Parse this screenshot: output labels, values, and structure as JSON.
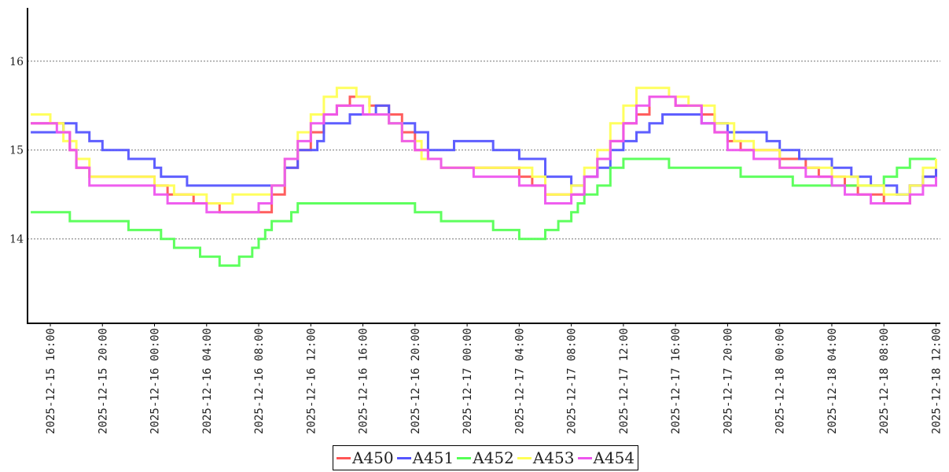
{
  "chart_data": {
    "type": "line",
    "step": true,
    "title": "",
    "xlabel": "",
    "ylabel": "",
    "ylim": [
      13.05,
      16.6
    ],
    "xlim": [
      "2025-12-15 14:15",
      "2025-12-18 12:20"
    ],
    "y_ticks": [
      "14",
      "15",
      "16"
    ],
    "x_ticks": [
      "2025-12-15 16:00",
      "2025-12-15 20:00",
      "2025-12-16 00:00",
      "2025-12-16 04:00",
      "2025-12-16 08:00",
      "2025-12-16 12:00",
      "2025-12-16 16:00",
      "2025-12-16 20:00",
      "2025-12-17 00:00",
      "2025-12-17 04:00",
      "2025-12-17 08:00",
      "2025-12-17 12:00",
      "2025-12-17 16:00",
      "2025-12-17 20:00",
      "2025-12-18 00:00",
      "2025-12-18 04:00",
      "2025-12-18 08:00",
      "2025-12-18 12:00"
    ],
    "grid": "horizontal dotted",
    "legend_position": "bottom-center",
    "series": [
      {
        "name": "A450",
        "color": "#ff5555",
        "points": [
          [
            "2025-12-15 14:30",
            15.3
          ],
          [
            "2025-12-15 17:00",
            15.2
          ],
          [
            "2025-12-15 17:30",
            15.0
          ],
          [
            "2025-12-15 18:00",
            14.8
          ],
          [
            "2025-12-15 19:00",
            14.7
          ],
          [
            "2025-12-15 21:00",
            14.7
          ],
          [
            "2025-12-16 00:00",
            14.6
          ],
          [
            "2025-12-16 01:00",
            14.5
          ],
          [
            "2025-12-16 03:00",
            14.4
          ],
          [
            "2025-12-16 05:00",
            14.3
          ],
          [
            "2025-12-16 09:00",
            14.5
          ],
          [
            "2025-12-16 10:00",
            14.8
          ],
          [
            "2025-12-16 11:00",
            15.0
          ],
          [
            "2025-12-16 12:00",
            15.2
          ],
          [
            "2025-12-16 13:00",
            15.4
          ],
          [
            "2025-12-16 14:00",
            15.5
          ],
          [
            "2025-12-16 15:00",
            15.6
          ],
          [
            "2025-12-16 16:30",
            15.5
          ],
          [
            "2025-12-16 18:00",
            15.4
          ],
          [
            "2025-12-16 19:00",
            15.2
          ],
          [
            "2025-12-16 20:00",
            15.0
          ],
          [
            "2025-12-16 21:00",
            14.9
          ],
          [
            "2025-12-16 22:00",
            14.8
          ],
          [
            "2025-12-17 02:00",
            14.8
          ],
          [
            "2025-12-17 04:00",
            14.7
          ],
          [
            "2025-12-17 05:00",
            14.6
          ],
          [
            "2025-12-17 06:00",
            14.5
          ],
          [
            "2025-12-17 08:00",
            14.5
          ],
          [
            "2025-12-17 09:00",
            14.7
          ],
          [
            "2025-12-17 10:00",
            14.9
          ],
          [
            "2025-12-17 11:00",
            15.1
          ],
          [
            "2025-12-17 12:00",
            15.3
          ],
          [
            "2025-12-17 13:00",
            15.4
          ],
          [
            "2025-12-17 14:00",
            15.6
          ],
          [
            "2025-12-17 16:00",
            15.5
          ],
          [
            "2025-12-17 18:00",
            15.4
          ],
          [
            "2025-12-17 19:00",
            15.2
          ],
          [
            "2025-12-17 20:00",
            15.1
          ],
          [
            "2025-12-17 21:00",
            15.0
          ],
          [
            "2025-12-18 00:00",
            14.9
          ],
          [
            "2025-12-18 02:00",
            14.8
          ],
          [
            "2025-12-18 03:00",
            14.7
          ],
          [
            "2025-12-18 05:00",
            14.6
          ],
          [
            "2025-12-18 06:00",
            14.5
          ],
          [
            "2025-12-18 08:00",
            14.4
          ],
          [
            "2025-12-18 10:00",
            14.6
          ],
          [
            "2025-12-18 11:00",
            14.7
          ],
          [
            "2025-12-18 12:00",
            14.8
          ]
        ]
      },
      {
        "name": "A451",
        "color": "#5555ff",
        "points": [
          [
            "2025-12-15 14:30",
            15.2
          ],
          [
            "2025-12-15 17:00",
            15.3
          ],
          [
            "2025-12-15 18:00",
            15.2
          ],
          [
            "2025-12-15 19:00",
            15.1
          ],
          [
            "2025-12-15 20:00",
            15.0
          ],
          [
            "2025-12-15 22:00",
            14.9
          ],
          [
            "2025-12-16 00:00",
            14.8
          ],
          [
            "2025-12-16 00:30",
            14.7
          ],
          [
            "2025-12-16 02:30",
            14.6
          ],
          [
            "2025-12-16 09:00",
            14.6
          ],
          [
            "2025-12-16 10:00",
            14.8
          ],
          [
            "2025-12-16 11:00",
            15.0
          ],
          [
            "2025-12-16 12:30",
            15.1
          ],
          [
            "2025-12-16 13:00",
            15.3
          ],
          [
            "2025-12-16 15:00",
            15.4
          ],
          [
            "2025-12-16 17:00",
            15.5
          ],
          [
            "2025-12-16 18:00",
            15.3
          ],
          [
            "2025-12-16 20:00",
            15.2
          ],
          [
            "2025-12-16 21:00",
            15.0
          ],
          [
            "2025-12-16 23:00",
            15.1
          ],
          [
            "2025-12-17 01:00",
            15.1
          ],
          [
            "2025-12-17 02:00",
            15.0
          ],
          [
            "2025-12-17 04:00",
            14.9
          ],
          [
            "2025-12-17 06:00",
            14.7
          ],
          [
            "2025-12-17 08:00",
            14.6
          ],
          [
            "2025-12-17 09:00",
            14.7
          ],
          [
            "2025-12-17 10:00",
            14.8
          ],
          [
            "2025-12-17 11:00",
            15.0
          ],
          [
            "2025-12-17 12:00",
            15.1
          ],
          [
            "2025-12-17 13:00",
            15.2
          ],
          [
            "2025-12-17 14:00",
            15.3
          ],
          [
            "2025-12-17 15:00",
            15.4
          ],
          [
            "2025-12-17 18:00",
            15.3
          ],
          [
            "2025-12-17 20:00",
            15.2
          ],
          [
            "2025-12-17 23:00",
            15.1
          ],
          [
            "2025-12-18 00:00",
            15.0
          ],
          [
            "2025-12-18 01:30",
            14.9
          ],
          [
            "2025-12-18 04:00",
            14.8
          ],
          [
            "2025-12-18 05:30",
            14.7
          ],
          [
            "2025-12-18 07:00",
            14.6
          ],
          [
            "2025-12-18 09:00",
            14.5
          ],
          [
            "2025-12-18 10:00",
            14.6
          ],
          [
            "2025-12-18 11:00",
            14.7
          ],
          [
            "2025-12-18 12:00",
            14.8
          ]
        ]
      },
      {
        "name": "A452",
        "color": "#55ff55",
        "points": [
          [
            "2025-12-15 14:30",
            14.3
          ],
          [
            "2025-12-15 17:30",
            14.2
          ],
          [
            "2025-12-15 22:00",
            14.1
          ],
          [
            "2025-12-16 00:30",
            14.0
          ],
          [
            "2025-12-16 01:30",
            13.9
          ],
          [
            "2025-12-16 03:30",
            13.8
          ],
          [
            "2025-12-16 05:00",
            13.7
          ],
          [
            "2025-12-16 06:30",
            13.8
          ],
          [
            "2025-12-16 07:30",
            13.9
          ],
          [
            "2025-12-16 08:00",
            14.0
          ],
          [
            "2025-12-16 08:30",
            14.1
          ],
          [
            "2025-12-16 09:00",
            14.2
          ],
          [
            "2025-12-16 10:30",
            14.3
          ],
          [
            "2025-12-16 11:00",
            14.4
          ],
          [
            "2025-12-16 20:00",
            14.3
          ],
          [
            "2025-12-16 22:00",
            14.2
          ],
          [
            "2025-12-17 02:00",
            14.1
          ],
          [
            "2025-12-17 04:00",
            14.0
          ],
          [
            "2025-12-17 06:00",
            14.1
          ],
          [
            "2025-12-17 07:00",
            14.2
          ],
          [
            "2025-12-17 08:00",
            14.3
          ],
          [
            "2025-12-17 08:30",
            14.4
          ],
          [
            "2025-12-17 09:00",
            14.5
          ],
          [
            "2025-12-17 10:00",
            14.6
          ],
          [
            "2025-12-17 11:00",
            14.8
          ],
          [
            "2025-12-17 12:00",
            14.9
          ],
          [
            "2025-12-17 15:30",
            14.8
          ],
          [
            "2025-12-17 21:00",
            14.7
          ],
          [
            "2025-12-18 01:00",
            14.6
          ],
          [
            "2025-12-18 07:00",
            14.6
          ],
          [
            "2025-12-18 08:00",
            14.7
          ],
          [
            "2025-12-18 09:00",
            14.8
          ],
          [
            "2025-12-18 10:00",
            14.9
          ],
          [
            "2025-12-18 12:00",
            14.9
          ]
        ]
      },
      {
        "name": "A453",
        "color": "#ffff55",
        "points": [
          [
            "2025-12-15 14:30",
            15.4
          ],
          [
            "2025-12-15 16:00",
            15.3
          ],
          [
            "2025-12-15 17:00",
            15.1
          ],
          [
            "2025-12-15 18:00",
            14.9
          ],
          [
            "2025-12-15 19:00",
            14.7
          ],
          [
            "2025-12-15 22:00",
            14.7
          ],
          [
            "2025-12-16 00:00",
            14.6
          ],
          [
            "2025-12-16 01:30",
            14.5
          ],
          [
            "2025-12-16 03:00",
            14.5
          ],
          [
            "2025-12-16 04:00",
            14.4
          ],
          [
            "2025-12-16 06:00",
            14.5
          ],
          [
            "2025-12-16 08:00",
            14.5
          ],
          [
            "2025-12-16 09:00",
            14.6
          ],
          [
            "2025-12-16 10:00",
            14.9
          ],
          [
            "2025-12-16 11:00",
            15.2
          ],
          [
            "2025-12-16 12:00",
            15.4
          ],
          [
            "2025-12-16 13:00",
            15.6
          ],
          [
            "2025-12-16 14:00",
            15.7
          ],
          [
            "2025-12-16 15:30",
            15.6
          ],
          [
            "2025-12-16 16:30",
            15.4
          ],
          [
            "2025-12-16 18:00",
            15.3
          ],
          [
            "2025-12-16 19:00",
            15.1
          ],
          [
            "2025-12-16 20:30",
            14.9
          ],
          [
            "2025-12-16 22:00",
            14.8
          ],
          [
            "2025-12-17 02:00",
            14.8
          ],
          [
            "2025-12-17 05:00",
            14.7
          ],
          [
            "2025-12-17 06:00",
            14.5
          ],
          [
            "2025-12-17 08:00",
            14.6
          ],
          [
            "2025-12-17 09:00",
            14.8
          ],
          [
            "2025-12-17 10:00",
            15.0
          ],
          [
            "2025-12-17 11:00",
            15.3
          ],
          [
            "2025-12-17 12:00",
            15.5
          ],
          [
            "2025-12-17 13:00",
            15.7
          ],
          [
            "2025-12-17 15:30",
            15.6
          ],
          [
            "2025-12-17 17:00",
            15.5
          ],
          [
            "2025-12-17 19:00",
            15.3
          ],
          [
            "2025-12-17 20:30",
            15.1
          ],
          [
            "2025-12-17 22:00",
            15.0
          ],
          [
            "2025-12-18 00:00",
            14.8
          ],
          [
            "2025-12-18 02:00",
            14.8
          ],
          [
            "2025-12-18 04:00",
            14.7
          ],
          [
            "2025-12-18 06:00",
            14.6
          ],
          [
            "2025-12-18 08:00",
            14.5
          ],
          [
            "2025-12-18 10:00",
            14.6
          ],
          [
            "2025-12-18 11:00",
            14.8
          ],
          [
            "2025-12-18 12:00",
            14.9
          ]
        ]
      },
      {
        "name": "A454",
        "color": "#ee55ee",
        "points": [
          [
            "2025-12-15 14:30",
            15.3
          ],
          [
            "2025-12-15 16:30",
            15.2
          ],
          [
            "2025-12-15 17:30",
            15.0
          ],
          [
            "2025-12-15 18:00",
            14.8
          ],
          [
            "2025-12-15 19:00",
            14.6
          ],
          [
            "2025-12-15 21:00",
            14.6
          ],
          [
            "2025-12-16 00:00",
            14.5
          ],
          [
            "2025-12-16 01:00",
            14.4
          ],
          [
            "2025-12-16 04:00",
            14.3
          ],
          [
            "2025-12-16 08:00",
            14.4
          ],
          [
            "2025-12-16 09:00",
            14.6
          ],
          [
            "2025-12-16 10:00",
            14.9
          ],
          [
            "2025-12-16 11:00",
            15.1
          ],
          [
            "2025-12-16 12:00",
            15.3
          ],
          [
            "2025-12-16 13:00",
            15.4
          ],
          [
            "2025-12-16 14:00",
            15.5
          ],
          [
            "2025-12-16 16:00",
            15.4
          ],
          [
            "2025-12-16 18:00",
            15.3
          ],
          [
            "2025-12-16 19:00",
            15.1
          ],
          [
            "2025-12-16 20:00",
            15.0
          ],
          [
            "2025-12-16 21:00",
            14.9
          ],
          [
            "2025-12-16 22:00",
            14.8
          ],
          [
            "2025-12-17 00:30",
            14.7
          ],
          [
            "2025-12-17 04:00",
            14.6
          ],
          [
            "2025-12-17 06:00",
            14.4
          ],
          [
            "2025-12-17 08:00",
            14.5
          ],
          [
            "2025-12-17 09:00",
            14.7
          ],
          [
            "2025-12-17 10:00",
            14.9
          ],
          [
            "2025-12-17 11:00",
            15.1
          ],
          [
            "2025-12-17 12:00",
            15.3
          ],
          [
            "2025-12-17 13:00",
            15.5
          ],
          [
            "2025-12-17 14:00",
            15.6
          ],
          [
            "2025-12-17 16:00",
            15.5
          ],
          [
            "2025-12-17 18:00",
            15.3
          ],
          [
            "2025-12-17 19:00",
            15.2
          ],
          [
            "2025-12-17 20:00",
            15.0
          ],
          [
            "2025-12-17 22:00",
            14.9
          ],
          [
            "2025-12-18 00:00",
            14.8
          ],
          [
            "2025-12-18 02:00",
            14.7
          ],
          [
            "2025-12-18 04:00",
            14.6
          ],
          [
            "2025-12-18 05:00",
            14.5
          ],
          [
            "2025-12-18 07:00",
            14.4
          ],
          [
            "2025-12-18 10:00",
            14.5
          ],
          [
            "2025-12-18 11:00",
            14.6
          ],
          [
            "2025-12-18 12:00",
            14.7
          ]
        ]
      }
    ]
  }
}
